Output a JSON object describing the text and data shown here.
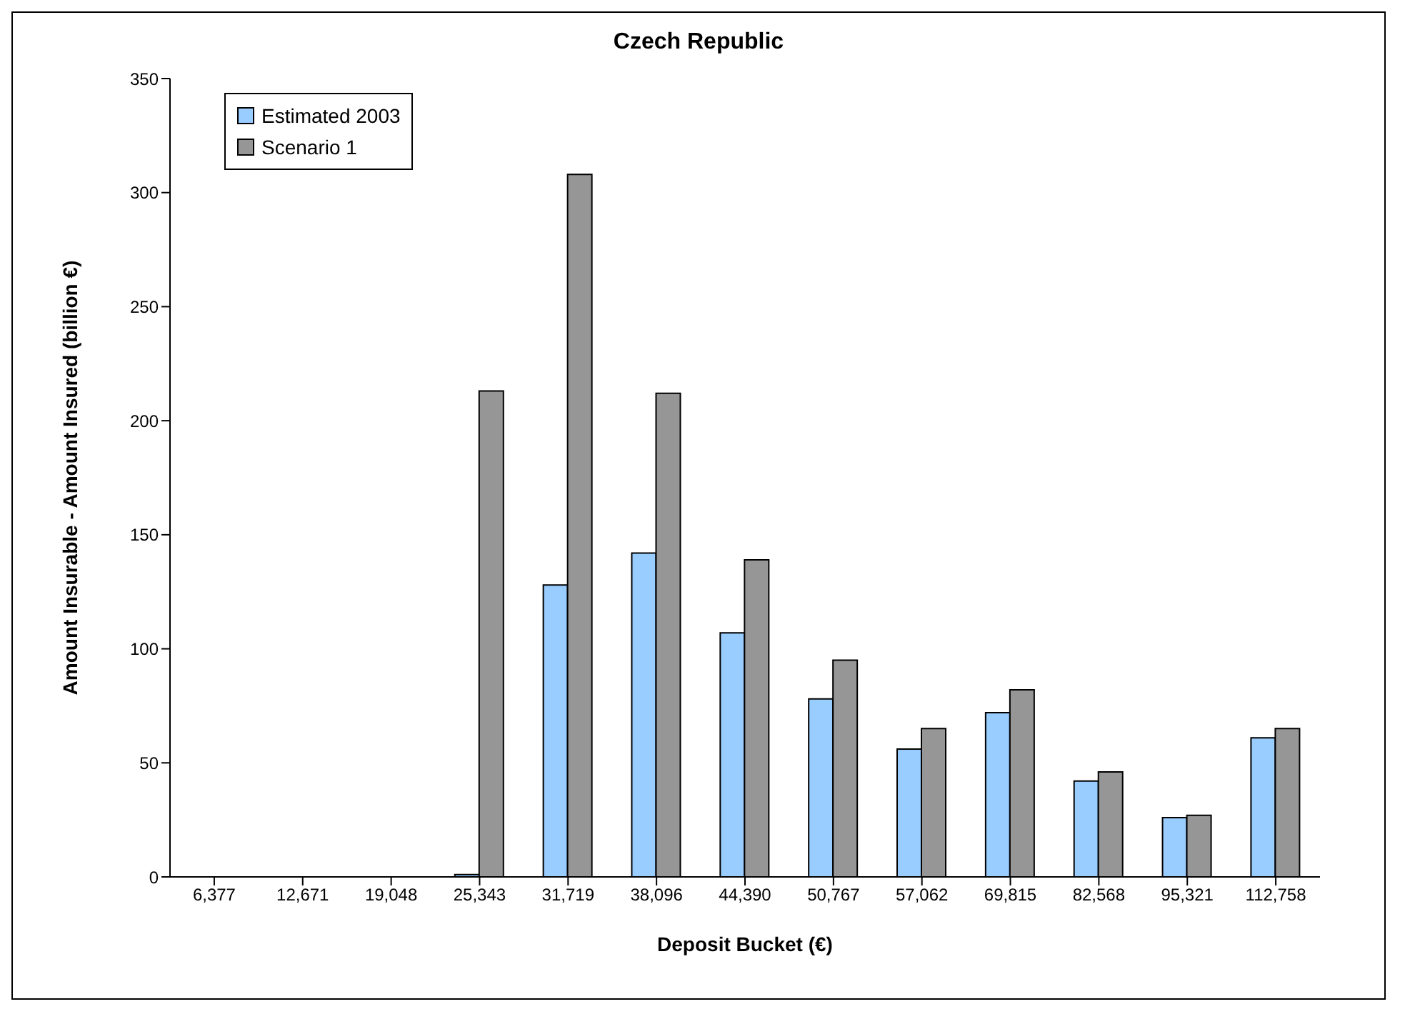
{
  "chart_data": {
    "type": "bar",
    "title": "Czech Republic",
    "xlabel": "Deposit Bucket (€)",
    "ylabel": "Amount Insurable - Amount Insured  (billion €)",
    "categories": [
      "6,377",
      "12,671",
      "19,048",
      "25,343",
      "31,719",
      "38,096",
      "44,390",
      "50,767",
      "57,062",
      "69,815",
      "82,568",
      "95,321",
      "112,758"
    ],
    "series": [
      {
        "name": "Estimated 2003",
        "color": "#99ccff",
        "values": [
          0,
          0,
          0,
          1,
          128,
          142,
          107,
          78,
          56,
          72,
          42,
          26,
          61
        ]
      },
      {
        "name": "Scenario 1",
        "color": "#969696",
        "values": [
          0,
          0,
          0,
          213,
          308,
          212,
          139,
          95,
          65,
          82,
          46,
          27,
          65
        ]
      }
    ],
    "ylim": [
      0,
      350
    ],
    "yticks": [
      0,
      50,
      100,
      150,
      200,
      250,
      300,
      350
    ],
    "grid": false,
    "legend": "top left"
  }
}
